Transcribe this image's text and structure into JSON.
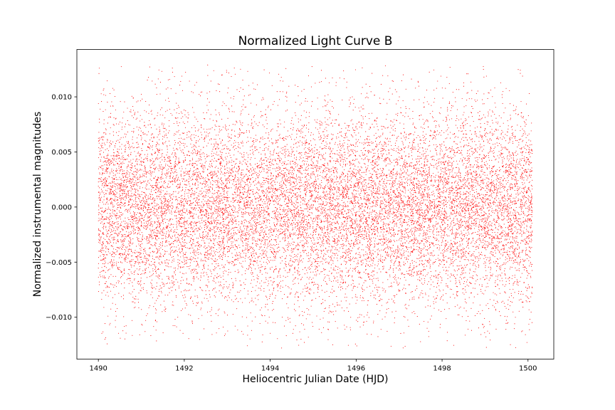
{
  "chart_data": {
    "type": "scatter",
    "title": "Normalized Light Curve B",
    "xlabel": "Heliocentric Julian Date (HJD)",
    "ylabel": "Normalized instrumental magnitudes",
    "xlim": [
      1489.5,
      1500.6
    ],
    "ylim": [
      -0.0138,
      0.0143
    ],
    "x_ticks": [
      1490,
      1492,
      1494,
      1496,
      1498,
      1500
    ],
    "x_tick_labels": [
      "1490",
      "1492",
      "1494",
      "1496",
      "1498",
      "1500"
    ],
    "y_ticks": [
      -0.01,
      -0.005,
      0.0,
      0.005,
      0.01
    ],
    "y_tick_labels": [
      "−0.010",
      "−0.005",
      "0.000",
      "0.005",
      "0.010"
    ],
    "grid": false,
    "legend": "none",
    "series": [
      {
        "marker_color": "#ff0000",
        "x_range": [
          1490.0,
          1500.1
        ],
        "point_count": 16000,
        "y_center": 0.0,
        "y_spread_sd": 0.0045,
        "y_extent": [
          -0.0128,
          0.0129
        ]
      }
    ]
  }
}
